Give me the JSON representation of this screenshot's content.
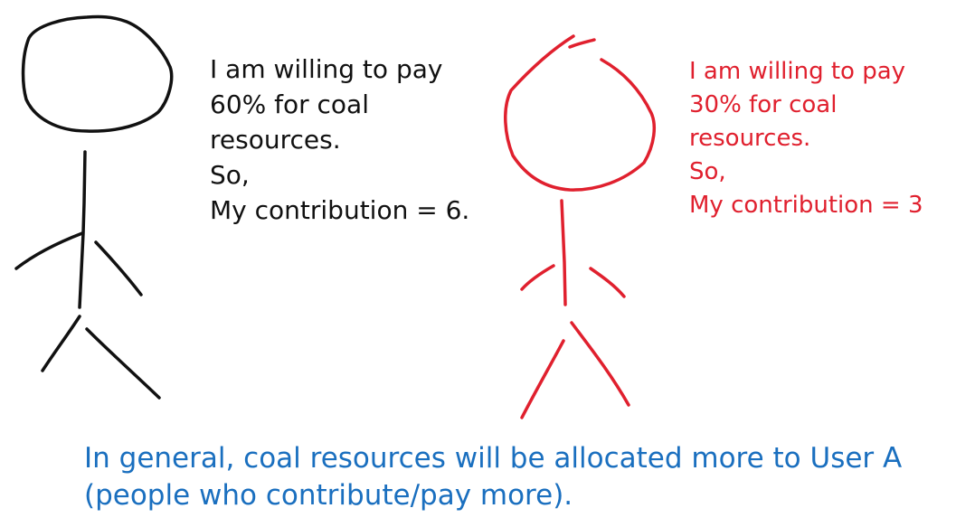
{
  "colors": {
    "person_a": "#111111",
    "person_b": "#e0202e",
    "conclusion": "#1a6fbf"
  },
  "person_a": {
    "note_lines": [
      "I am willing to pay",
      "60% for coal",
      "resources.",
      "So,",
      "My contribution = 6."
    ]
  },
  "person_b": {
    "note_lines": [
      "I am willing to pay",
      "30% for coal",
      "resources.",
      "So,",
      "My contribution = 3"
    ]
  },
  "conclusion_lines": [
    "In general, coal resources will be allocated more to User A",
    "(people who contribute/pay more)."
  ]
}
